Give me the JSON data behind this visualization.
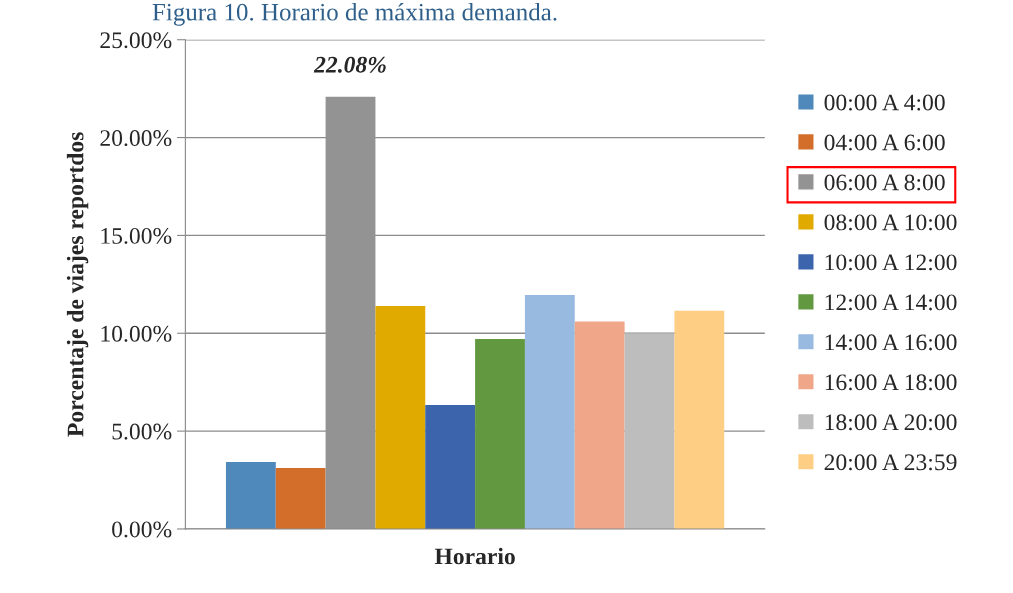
{
  "chart_data": {
    "type": "bar",
    "title": "Figura 10. Horario de máxima demanda.",
    "xlabel": "Horario",
    "ylabel": "Porcentaje de viajes reportdos",
    "categories": [
      null
    ],
    "series": [
      {
        "name": "00:00 A 4:00",
        "color": "#4f88bb",
        "values": [
          3.42
        ]
      },
      {
        "name": "04:00 A 6:00",
        "color": "#d26e2a",
        "values": [
          3.12
        ]
      },
      {
        "name": "06:00 A 8:00",
        "color": "#939393",
        "values": [
          22.08
        ],
        "value_labels": [
          "22.08%"
        ]
      },
      {
        "name": "08:00 A 10:00",
        "color": "#e1aa00",
        "values": [
          11.39
        ]
      },
      {
        "name": "10:00 A 12:00",
        "color": "#3b64ad",
        "values": [
          6.33
        ]
      },
      {
        "name": "12:00 A 14:00",
        "color": "#62983f",
        "values": [
          9.71
        ]
      },
      {
        "name": "14:00 A 16:00",
        "color": "#98b9e0",
        "values": [
          11.96
        ]
      },
      {
        "name": "16:00 A 18:00",
        "color": "#f0a789",
        "values": [
          10.6
        ]
      },
      {
        "name": "18:00 A 20:00",
        "color": "#bdbdbd",
        "values": [
          10.0
        ]
      },
      {
        "name": "20:00 A 23:59",
        "color": "#fdce83",
        "values": [
          11.15
        ]
      }
    ],
    "ylim": [
      0,
      25
    ],
    "yticks": [
      {
        "value": 0,
        "label": "0.00%"
      },
      {
        "value": 5,
        "label": "5.00%"
      },
      {
        "value": 10,
        "label": "10.00%"
      },
      {
        "value": 15,
        "label": "15.00%"
      },
      {
        "value": 20,
        "label": "20.00%"
      },
      {
        "value": 25,
        "label": "25.00%"
      }
    ],
    "grid": "y",
    "legend": "right"
  }
}
